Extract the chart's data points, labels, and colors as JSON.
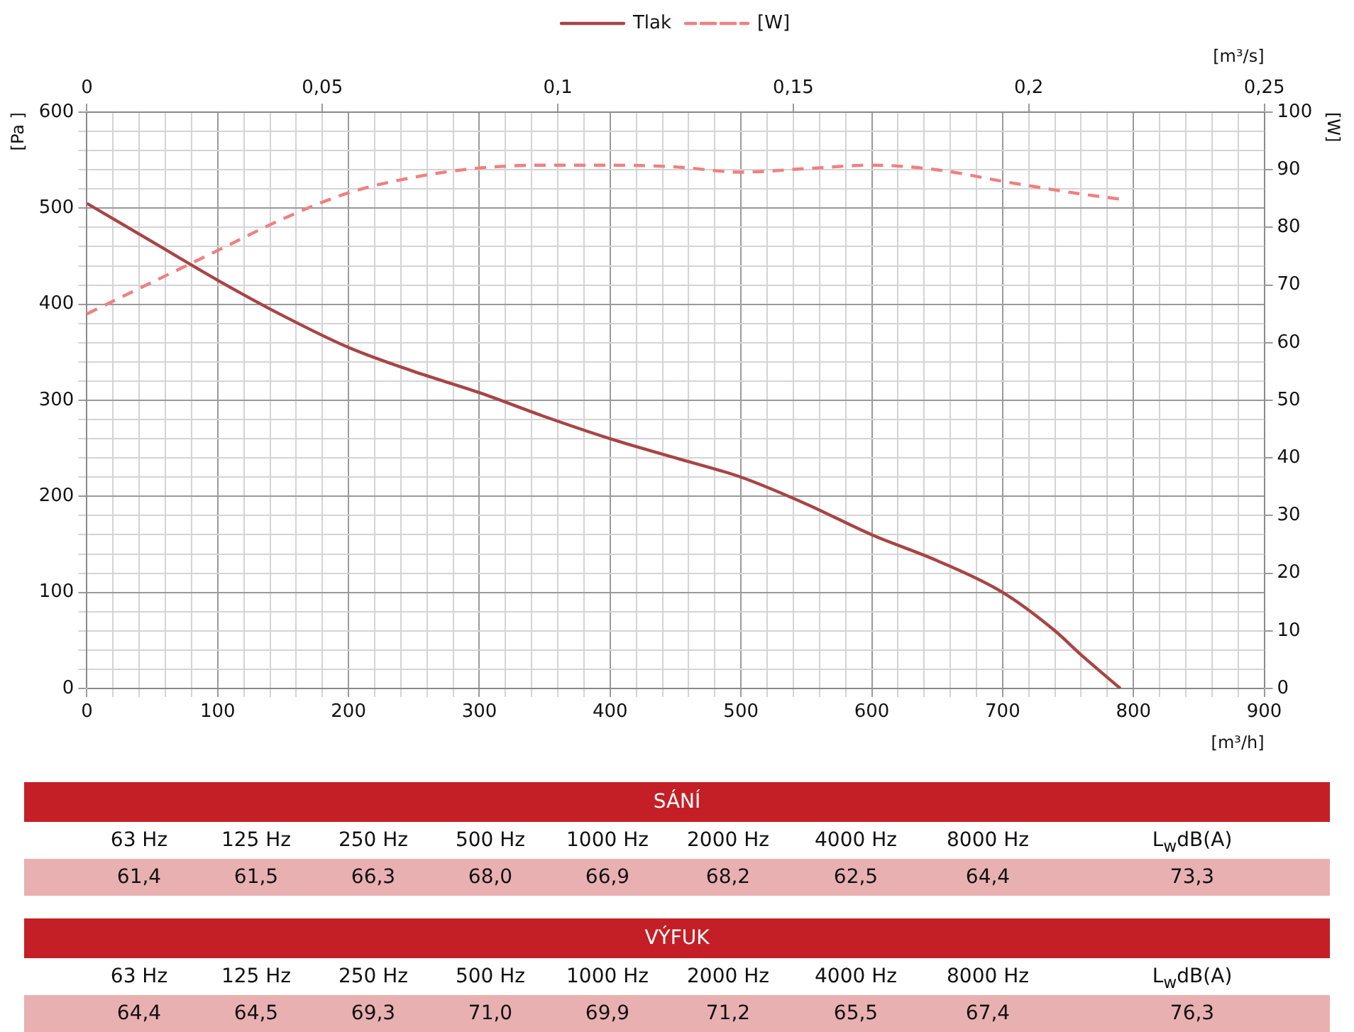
{
  "chart_data": [
    {
      "type": "line",
      "xlabel": "[m³/h]",
      "x2label": "[m³/s]",
      "ylabel": "[Pa ]",
      "y2label": "[W]",
      "legend": "top",
      "grid": true,
      "xlim": [
        0,
        900
      ],
      "xticks": [
        0,
        {
          "value": 20,
          "label": null
        },
        {
          "value": 40,
          "label": null
        },
        {
          "value": 60,
          "label": null
        },
        {
          "value": 80,
          "label": null
        },
        100,
        {
          "value": 120,
          "label": null
        },
        {
          "value": 140,
          "label": null
        },
        {
          "value": 160,
          "label": null
        },
        {
          "value": 180,
          "label": null
        },
        200,
        {
          "value": 220,
          "label": null
        },
        {
          "value": 240,
          "label": null
        },
        {
          "value": 260,
          "label": null
        },
        {
          "value": 280,
          "label": null
        },
        300,
        {
          "value": 320,
          "label": null
        },
        {
          "value": 340,
          "label": null
        },
        {
          "value": 360,
          "label": null
        },
        {
          "value": 380,
          "label": null
        },
        400,
        {
          "value": 420,
          "label": null
        },
        {
          "value": 440,
          "label": null
        },
        {
          "value": 460,
          "label": null
        },
        {
          "value": 480,
          "label": null
        },
        500,
        {
          "value": 520,
          "label": null
        },
        {
          "value": 540,
          "label": null
        },
        {
          "value": 560,
          "label": null
        },
        {
          "value": 580,
          "label": null
        },
        600,
        {
          "value": 620,
          "label": null
        },
        {
          "value": 640,
          "label": null
        },
        {
          "value": 660,
          "label": null
        },
        {
          "value": 680,
          "label": null
        },
        700,
        {
          "value": 720,
          "label": null
        },
        {
          "value": 740,
          "label": null
        },
        {
          "value": 760,
          "label": null
        },
        {
          "value": 780,
          "label": null
        },
        800,
        {
          "value": 820,
          "label": null
        },
        {
          "value": 840,
          "label": null
        },
        {
          "value": 860,
          "label": null
        },
        {
          "value": 880,
          "label": null
        },
        900
      ],
      "x2lim": [
        0,
        0.25
      ],
      "x2ticks": [
        0,
        {
          "value": 0.05,
          "label": "0,05"
        },
        {
          "value": 0.1,
          "label": "0,1"
        },
        {
          "value": 0.15,
          "label": "0,15"
        },
        {
          "value": 0.2,
          "label": "0,2"
        },
        {
          "value": 0.25,
          "label": "0,25"
        }
      ],
      "ylim": [
        0,
        600
      ],
      "yticks": [
        0,
        {
          "value": 20,
          "label": null
        },
        {
          "value": 40,
          "label": null
        },
        {
          "value": 60,
          "label": null
        },
        {
          "value": 80,
          "label": null
        },
        100,
        {
          "value": 120,
          "label": null
        },
        {
          "value": 140,
          "label": null
        },
        {
          "value": 160,
          "label": null
        },
        {
          "value": 180,
          "label": null
        },
        200,
        {
          "value": 220,
          "label": null
        },
        {
          "value": 240,
          "label": null
        },
        {
          "value": 260,
          "label": null
        },
        {
          "value": 280,
          "label": null
        },
        300,
        {
          "value": 320,
          "label": null
        },
        {
          "value": 340,
          "label": null
        },
        {
          "value": 360,
          "label": null
        },
        {
          "value": 380,
          "label": null
        },
        400,
        {
          "value": 420,
          "label": null
        },
        {
          "value": 440,
          "label": null
        },
        {
          "value": 460,
          "label": null
        },
        {
          "value": 480,
          "label": null
        },
        500,
        {
          "value": 520,
          "label": null
        },
        {
          "value": 540,
          "label": null
        },
        {
          "value": 560,
          "label": null
        },
        {
          "value": 580,
          "label": null
        },
        600
      ],
      "y2lim": [
        0,
        100
      ],
      "y2ticks": [
        0,
        10,
        20,
        30,
        40,
        50,
        60,
        70,
        80,
        90,
        100
      ],
      "x": [
        0,
        50,
        100,
        150,
        200,
        250,
        300,
        350,
        400,
        450,
        500,
        550,
        600,
        650,
        700,
        740,
        760,
        790
      ],
      "series": [
        {
          "name": "Tlak",
          "color": "#a84545",
          "line_style": "solid",
          "values": [
            505,
            465,
            425,
            388,
            355,
            330,
            308,
            283,
            260,
            240,
            220,
            192,
            160,
            133,
            100,
            60,
            35,
            0
          ]
        },
        {
          "name": "[W]",
          "color": "#f08080",
          "line_style": "dashed",
          "axis": "y2",
          "values": [
            65,
            70.5,
            76,
            81.5,
            86,
            88.7,
            90.3,
            90.8,
            90.8,
            90.5,
            89.6,
            90.2,
            90.8,
            90,
            88,
            86.5,
            85.8,
            84.9
          ]
        }
      ]
    },
    {
      "type": "other",
      "title": "SÁNÍ",
      "categories": [
        "63 Hz",
        "125 Hz",
        "250 Hz",
        "500 Hz",
        "1000 Hz",
        "2000 Hz",
        "4000 Hz",
        "8000 Hz",
        "L$_{w}$dB(A)"
      ],
      "annotations": [
        "61,4",
        "61,5",
        "66,3",
        "68,0",
        "66,9",
        "68,2",
        "62,5",
        "64,4",
        "73,3"
      ]
    },
    {
      "type": "other",
      "title": "VÝFUK",
      "categories": [
        "63 Hz",
        "125 Hz",
        "250 Hz",
        "500 Hz",
        "1000 Hz",
        "2000 Hz",
        "4000 Hz",
        "8000 Hz",
        "L$_{w}$dB(A)"
      ],
      "annotations": [
        "64,4",
        "64,5",
        "69,3",
        "71,0",
        "69,9",
        "71,2",
        "65,5",
        "67,4",
        "76,3"
      ]
    }
  ]
}
